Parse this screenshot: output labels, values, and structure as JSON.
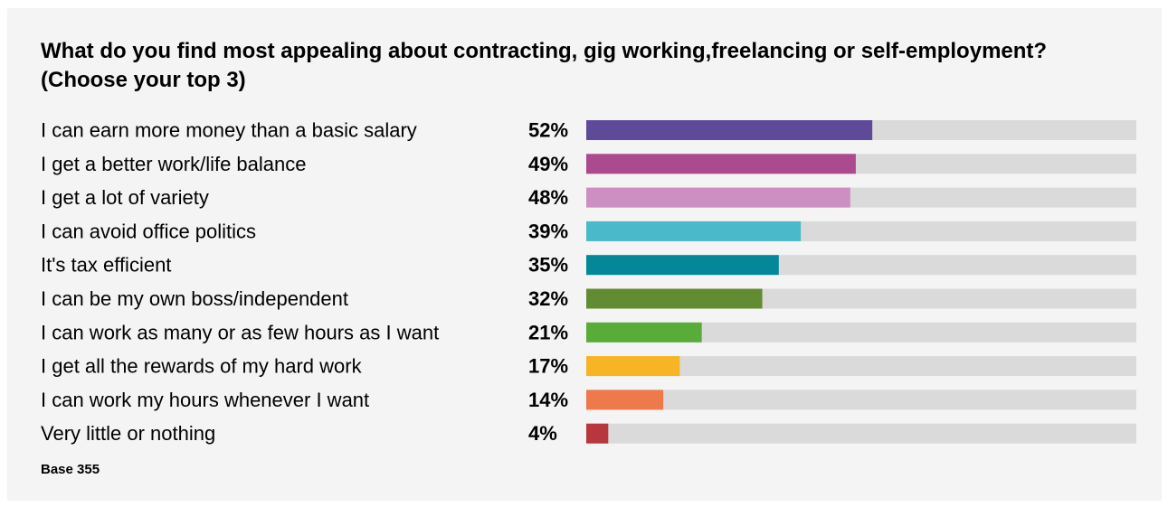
{
  "chart_data": {
    "type": "bar",
    "orientation": "horizontal",
    "title": "What do you find most appealing about contracting, gig working,freelancing or self-employment? (Choose your top 3)",
    "categories": [
      "I can earn more money than a basic salary",
      "I get a better work/life balance",
      "I get a lot of variety",
      "I can avoid office politics",
      "It's tax efficient",
      "I can be my own boss/independent",
      "I can work as many or as few hours as I want",
      "I get all the rewards of my hard work",
      "I can work my hours whenever I want",
      "Very little or nothing"
    ],
    "values": [
      52,
      49,
      48,
      39,
      35,
      32,
      21,
      17,
      14,
      4
    ],
    "value_labels": [
      "52%",
      "49%",
      "48%",
      "39%",
      "35%",
      "32%",
      "21%",
      "17%",
      "14%",
      "4%"
    ],
    "colors": [
      "#5e4a99",
      "#ac4a90",
      "#cd8ec1",
      "#4ab9c9",
      "#048798",
      "#638b31",
      "#5aac3a",
      "#f7b524",
      "#ed794c",
      "#b7373c"
    ],
    "track_color": "#dadada",
    "xlim": [
      0,
      100
    ],
    "grid": false,
    "legend": "none",
    "footnote": "Base 355"
  }
}
